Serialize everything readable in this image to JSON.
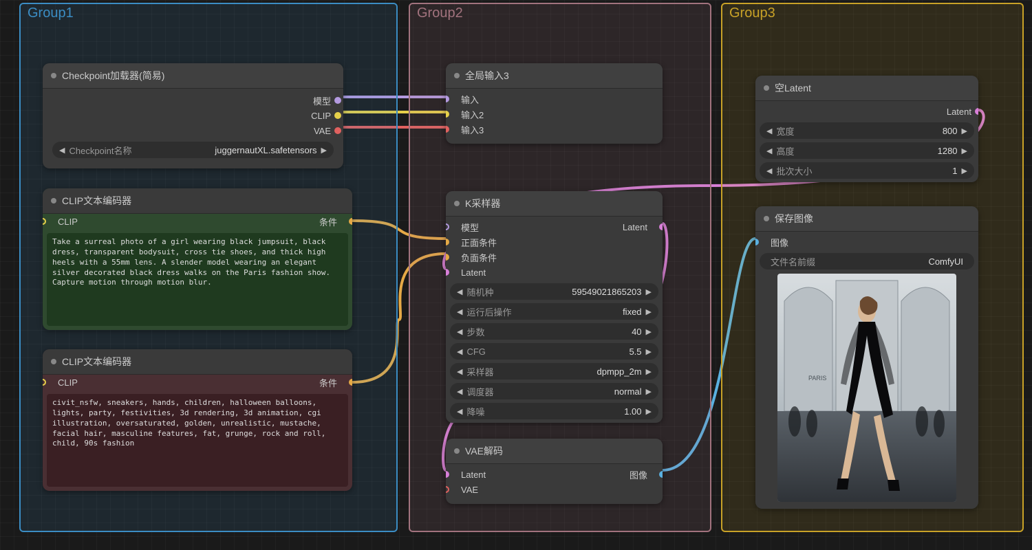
{
  "groups": {
    "g1": {
      "title": "Group1",
      "color": "#3b8dc4",
      "bg": "rgba(59,141,196,0.13)"
    },
    "g2": {
      "title": "Group2",
      "color": "#a2737e",
      "bg": "rgba(162,115,126,0.14)"
    },
    "g3": {
      "title": "Group3",
      "color": "#c9a227",
      "bg": "rgba(201,162,39,0.13)"
    }
  },
  "nodes": {
    "checkpoint": {
      "title": "Checkpoint加载器(简易)",
      "outputs": {
        "model": "模型",
        "clip": "CLIP",
        "vae": "VAE"
      },
      "widget": {
        "label": "Checkpoint名称",
        "value": "juggernautXL.safetensors"
      }
    },
    "clip_pos": {
      "title": "CLIP文本编码器",
      "bg": "#2f4a2f",
      "text_bg": "#1f3a1f",
      "input": "CLIP",
      "output": "条件",
      "text": "Take a surreal photo of a girl wearing black jumpsuit, black dress, transparent bodysuit, cross tie shoes, and thick high heels with a 55mm lens. A slender model wearing an elegant silver decorated black dress walks on the Paris fashion show. Capture motion through motion blur."
    },
    "clip_neg": {
      "title": "CLIP文本编码器",
      "bg": "#4a2f33",
      "text_bg": "#3a1f23",
      "input": "CLIP",
      "output": "条件",
      "text": "civit_nsfw, sneakers, hands, children, halloween balloons, lights, party, festivities, 3d rendering, 3d animation, cgi illustration, oversaturated, golden, unrealistic, mustache, facial hair, masculine features, fat, grunge, rock and roll, child, 90s fashion"
    },
    "global_inputs": {
      "title": "全局输入3",
      "inputs": {
        "in1": "输入",
        "in2": "输入2",
        "in3": "输入3"
      }
    },
    "ksampler": {
      "title": "K采样器",
      "inputs": {
        "model": "模型",
        "pos": "正面条件",
        "neg": "负面条件",
        "latent": "Latent"
      },
      "output": "Latent",
      "widgets": [
        {
          "label": "随机种",
          "value": "59549021865203"
        },
        {
          "label": "运行后操作",
          "value": "fixed"
        },
        {
          "label": "步数",
          "value": "40"
        },
        {
          "label": "CFG",
          "value": "5.5"
        },
        {
          "label": "采样器",
          "value": "dpmpp_2m"
        },
        {
          "label": "调度器",
          "value": "normal"
        },
        {
          "label": "降噪",
          "value": "1.00"
        }
      ]
    },
    "vae_decode": {
      "title": "VAE解码",
      "inputs": {
        "latent": "Latent",
        "vae": "VAE"
      },
      "output": "图像"
    },
    "empty_latent": {
      "title": "空Latent",
      "output": "Latent",
      "widgets": [
        {
          "label": "宽度",
          "value": "800"
        },
        {
          "label": "高度",
          "value": "1280"
        },
        {
          "label": "批次大小",
          "value": "1"
        }
      ]
    },
    "save_image": {
      "title": "保存图像",
      "input": "图像",
      "widget": {
        "label": "文件名前缀",
        "value": "ComfyUI"
      }
    }
  },
  "colors": {
    "model": "#b49ae0",
    "clip": "#e6d04a",
    "vae": "#e0615f",
    "cond": "#e5a946",
    "latent": "#d87fd8",
    "image": "#5ab0e0"
  }
}
